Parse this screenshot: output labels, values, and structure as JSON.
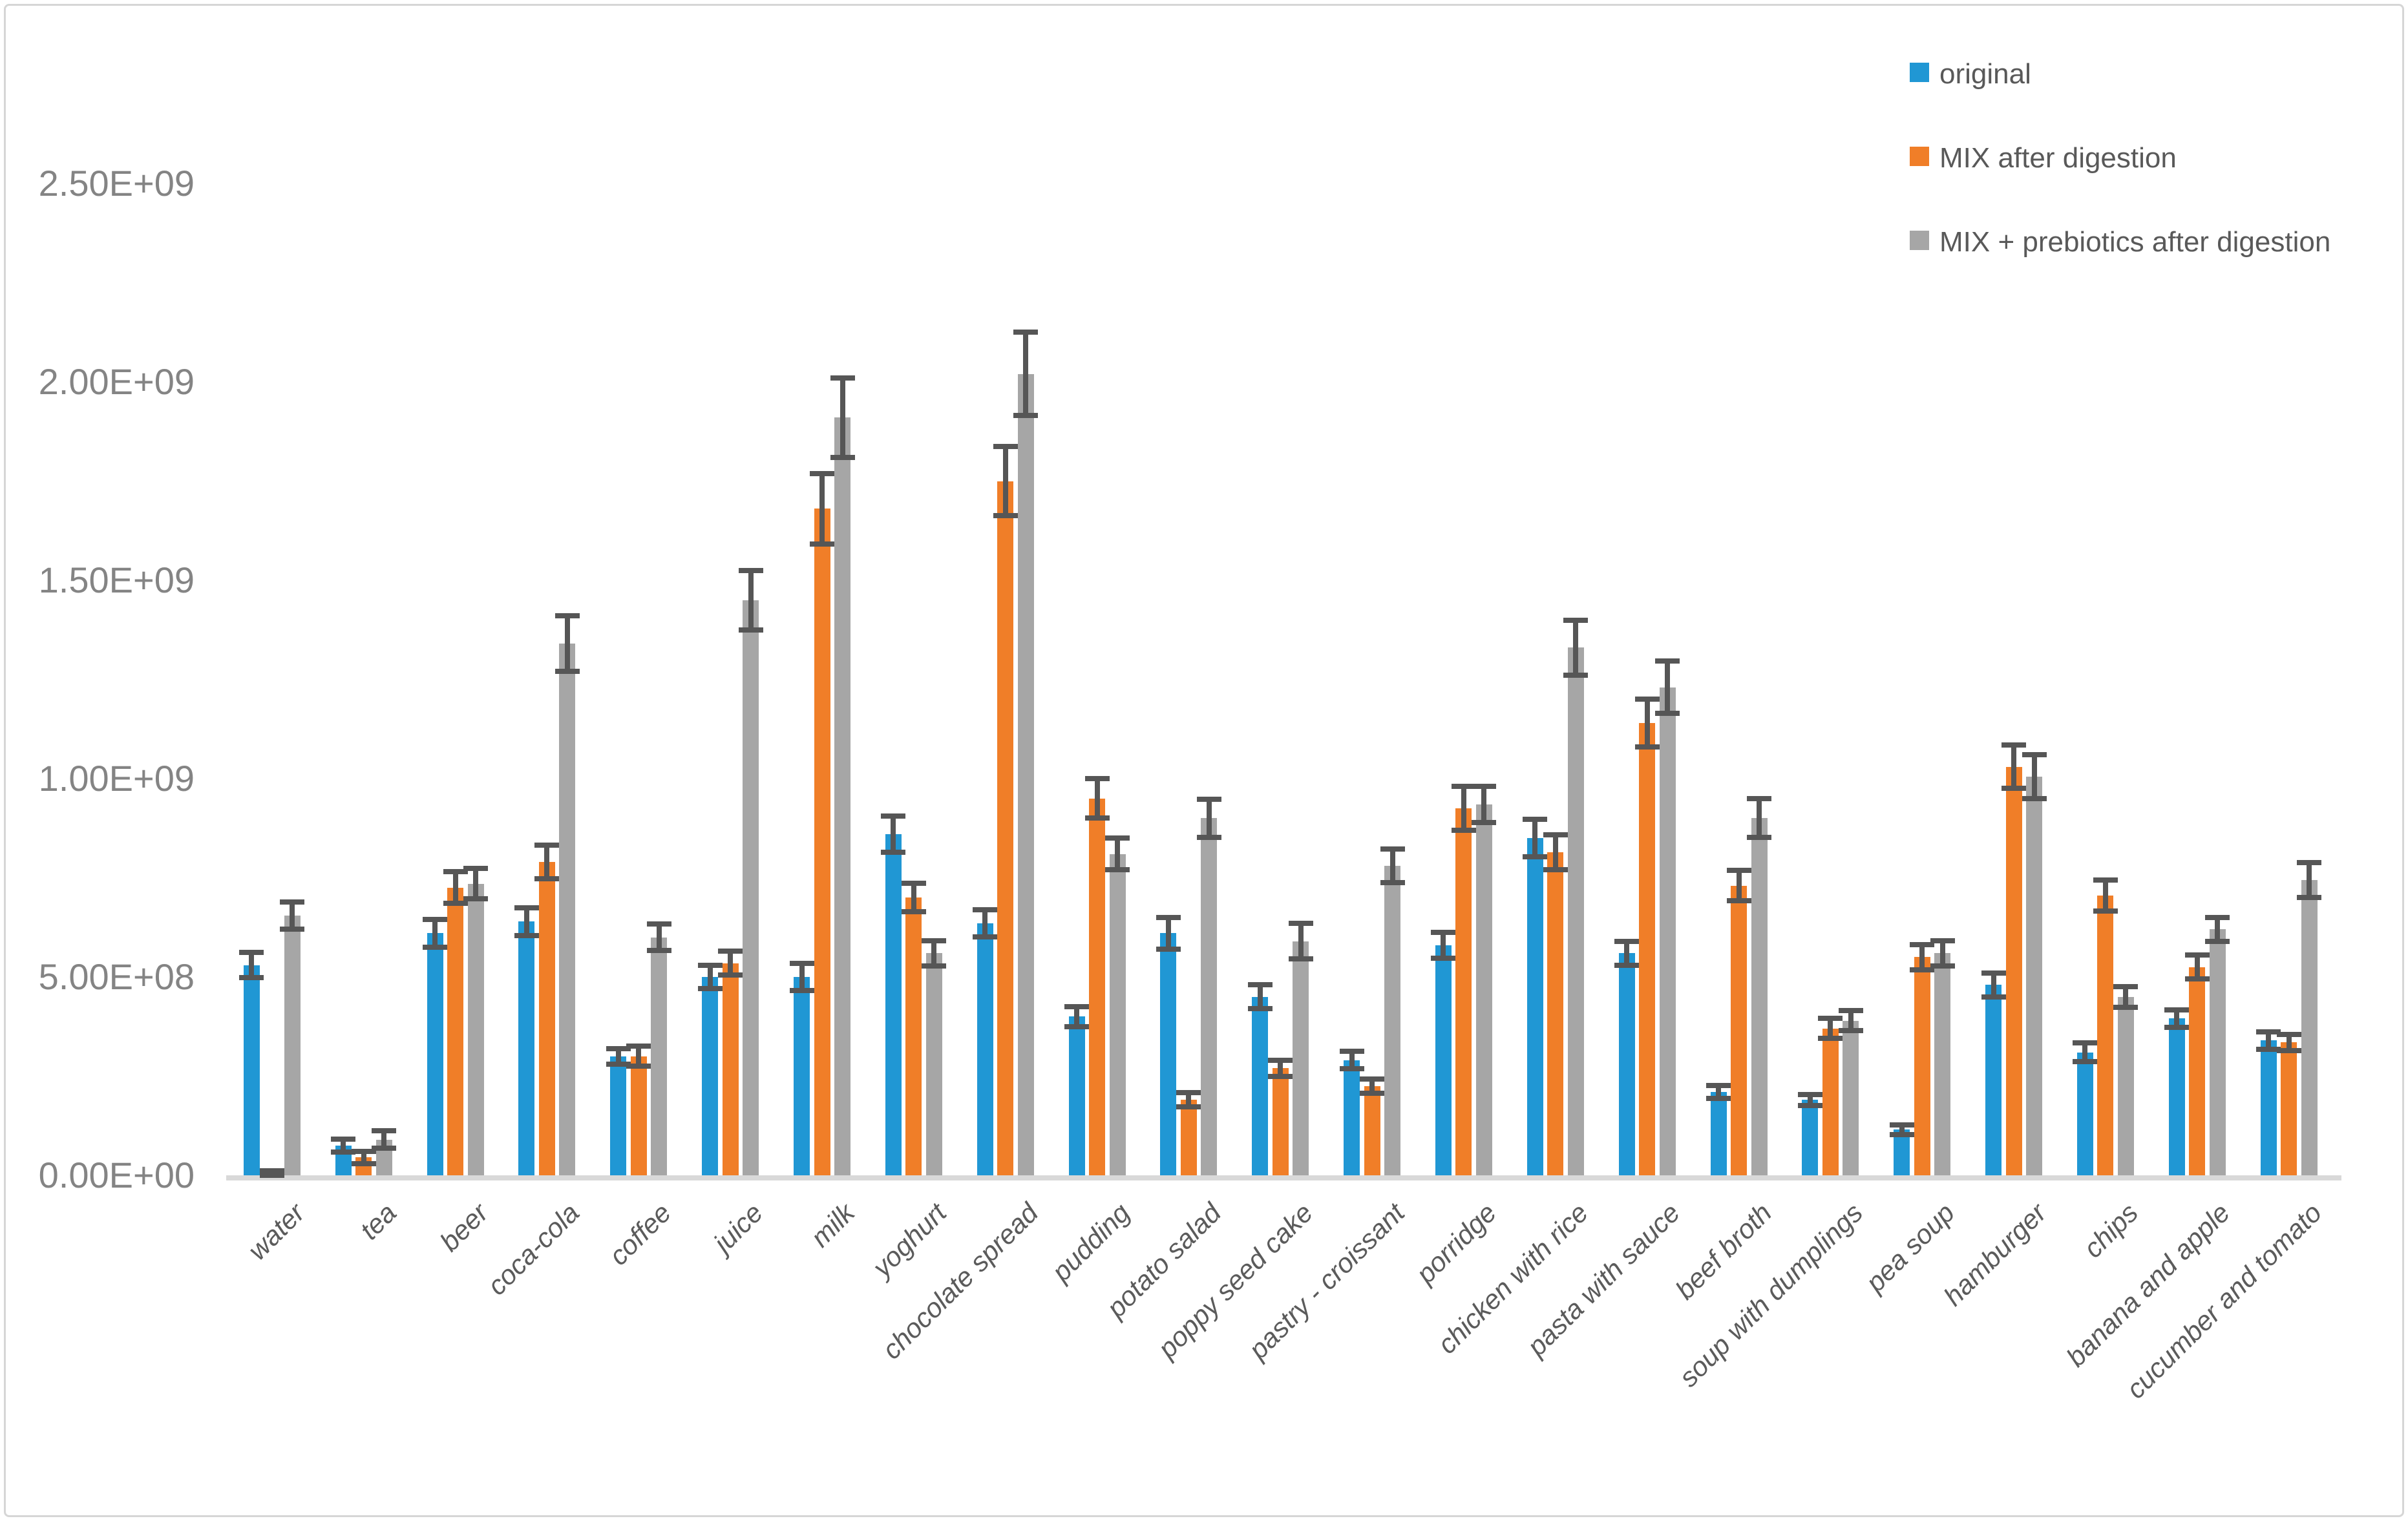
{
  "page": {
    "background": "#ffffff",
    "frame_border_color": "#d6d6d6"
  },
  "chart_data": {
    "type": "bar",
    "title": "",
    "xlabel": "",
    "ylabel": "",
    "grid": false,
    "error_bars": true,
    "legend_position": "top-right",
    "colors": {
      "error_bar": "#565656",
      "baseline": "#d9d9d9",
      "y_tick_text": "#848484",
      "category_text": "#5b5b5b",
      "legend_text": "#595959"
    },
    "y_axis": {
      "min": 0,
      "max": 2500000000,
      "step": 500000000,
      "tick_labels": [
        "0.00E+00",
        "5.00E+08",
        "1.00E+09",
        "1.50E+09",
        "2.00E+09",
        "2.50E+09"
      ]
    },
    "categories": [
      "water",
      "tea",
      "beer",
      "coca-cola",
      "coffee",
      "juice",
      "milk",
      "yoghurt",
      "chocolate spread",
      "pudding",
      "potato salad",
      "poppy seed cake",
      "pastry - croissant",
      "porridge",
      "chicken with rice",
      "pasta with sauce",
      "beef broth",
      "soup with dumplings",
      "pea soup",
      "hamburger",
      "chips",
      "banana and apple",
      "cucumber and tomato"
    ],
    "series": [
      {
        "name": "original",
        "color": "#2097d4",
        "values": [
          530000000,
          75000000,
          610000000,
          640000000,
          300000000,
          500000000,
          500000000,
          860000000,
          635000000,
          400000000,
          610000000,
          450000000,
          290000000,
          580000000,
          850000000,
          560000000,
          210000000,
          190000000,
          115000000,
          480000000,
          310000000,
          395000000,
          340000000
        ],
        "errors": [
          32000000,
          16000000,
          35000000,
          35000000,
          20000000,
          30000000,
          35000000,
          45000000,
          34000000,
          25000000,
          40000000,
          30000000,
          22000000,
          33000000,
          47000000,
          30000000,
          16000000,
          14000000,
          12000000,
          30000000,
          24000000,
          22000000,
          22000000
        ]
      },
      {
        "name": "MIX after digestion",
        "color": "#f07e28",
        "values": [
          6000000,
          45000000,
          725000000,
          790000000,
          300000000,
          535000000,
          1680000000,
          700000000,
          1750000000,
          950000000,
          190000000,
          270000000,
          225000000,
          925000000,
          815000000,
          1140000000,
          730000000,
          370000000,
          550000000,
          1030000000,
          705000000,
          525000000,
          335000000
        ],
        "errors": [
          6000000,
          15000000,
          40000000,
          43000000,
          25000000,
          30000000,
          88000000,
          36000000,
          87000000,
          50000000,
          18000000,
          20000000,
          18000000,
          55000000,
          44000000,
          60000000,
          38000000,
          25000000,
          32000000,
          55000000,
          39000000,
          30000000,
          20000000
        ]
      },
      {
        "name": "MIX + prebiotics after digestion",
        "color": "#a6a6a6",
        "values": [
          655000000,
          90000000,
          735000000,
          1340000000,
          600000000,
          1450000000,
          1910000000,
          560000000,
          2020000000,
          810000000,
          900000000,
          590000000,
          780000000,
          935000000,
          1330000000,
          1230000000,
          900000000,
          390000000,
          560000000,
          1005000000,
          450000000,
          620000000,
          745000000
        ],
        "errors": [
          34000000,
          22000000,
          38000000,
          70000000,
          34000000,
          75000000,
          100000000,
          32000000,
          105000000,
          40000000,
          48000000,
          45000000,
          42000000,
          46000000,
          69000000,
          66000000,
          49000000,
          25000000,
          32000000,
          55000000,
          26000000,
          30000000,
          44000000
        ]
      }
    ]
  }
}
